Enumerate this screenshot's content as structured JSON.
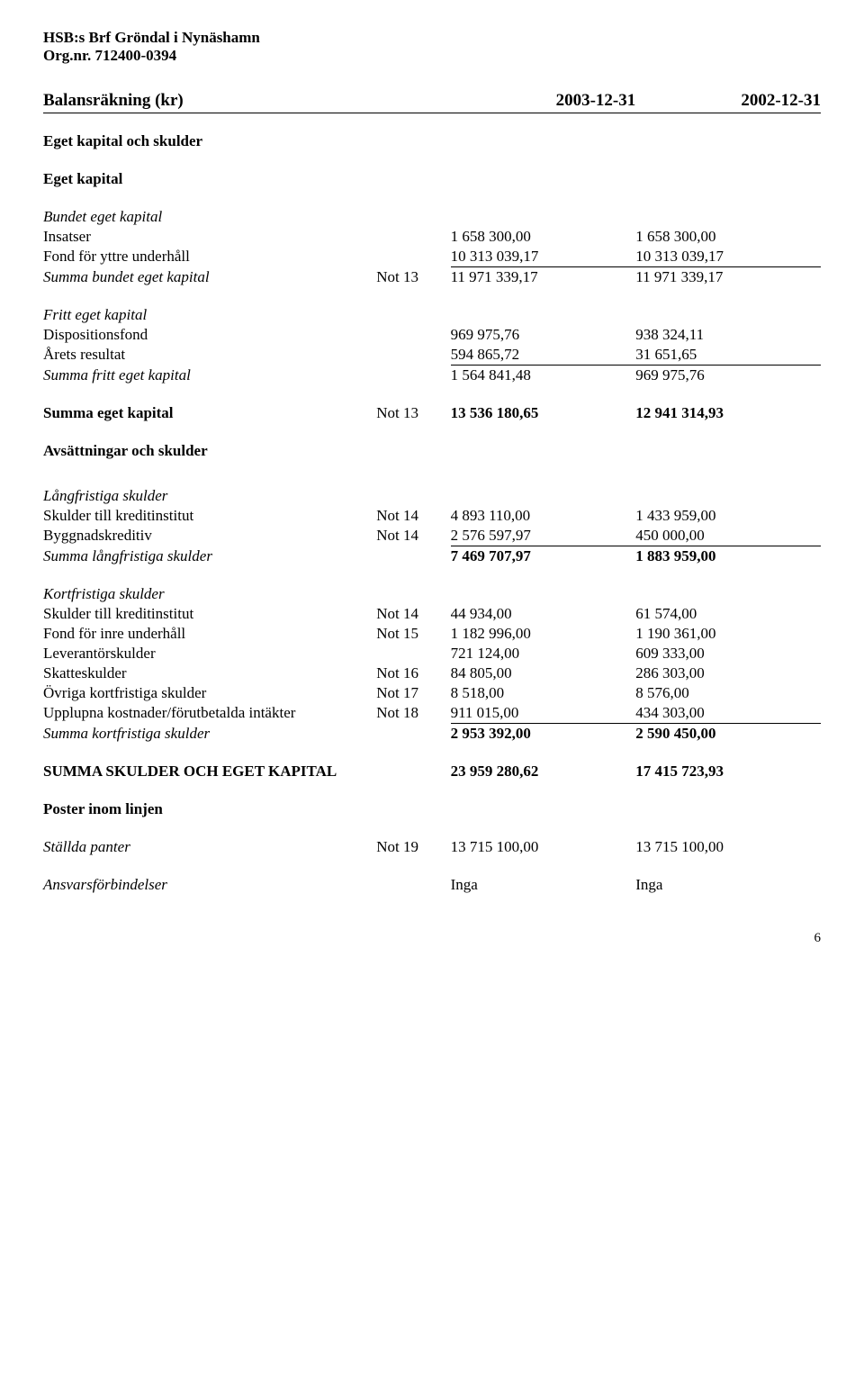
{
  "header": {
    "org_name": "HSB:s Brf Gröndal i Nynäshamn",
    "org_nr_label": "Org.nr.",
    "org_nr": "712400-0394"
  },
  "title": "Balansräkning (kr)",
  "dates": {
    "d1": "2003-12-31",
    "d2": "2002-12-31"
  },
  "h_eget_kap_skulder": "Eget kapital och skulder",
  "h_eget_kap": "Eget kapital",
  "h_bundet": "Bundet eget kapital",
  "rows_bundet": [
    {
      "label": "Insatser",
      "note": "",
      "v1": "1 658 300,00",
      "v2": "1 658 300,00"
    },
    {
      "label": "Fond för yttre underhåll",
      "note": "",
      "v1": "10 313 039,17",
      "v2": "10 313 039,17"
    }
  ],
  "sum_bundet": {
    "label": "Summa bundet eget kapital",
    "note": "Not 13",
    "v1": "11 971 339,17",
    "v2": "11 971 339,17"
  },
  "h_fritt": "Fritt eget kapital",
  "rows_fritt": [
    {
      "label": "Dispositionsfond",
      "note": "",
      "v1": "969 975,76",
      "v2": "938 324,11"
    },
    {
      "label": "Årets resultat",
      "note": "",
      "v1": "594 865,72",
      "v2": "31 651,65"
    }
  ],
  "sum_fritt": {
    "label": "Summa fritt eget kapital",
    "note": "",
    "v1": "1 564 841,48",
    "v2": "969 975,76"
  },
  "sum_eget": {
    "label": "Summa eget kapital",
    "note": "Not 13",
    "v1": "13 536 180,65",
    "v2": "12 941 314,93"
  },
  "h_avs": "Avsättningar och skulder",
  "h_lang": "Långfristiga skulder",
  "rows_lang": [
    {
      "label": "Skulder till kreditinstitut",
      "note": "Not 14",
      "v1": "4 893 110,00",
      "v2": "1 433 959,00"
    },
    {
      "label": "Byggnadskreditiv",
      "note": "Not 14",
      "v1": "2 576 597,97",
      "v2": "450 000,00"
    }
  ],
  "sum_lang": {
    "label": "Summa långfristiga skulder",
    "note": "",
    "v1": "7 469 707,97",
    "v2": "1 883 959,00"
  },
  "h_kort": "Kortfristiga skulder",
  "rows_kort": [
    {
      "label": "Skulder till kreditinstitut",
      "note": "Not 14",
      "v1": "44 934,00",
      "v2": "61 574,00"
    },
    {
      "label": "Fond för inre underhåll",
      "note": "Not 15",
      "v1": "1 182 996,00",
      "v2": "1 190 361,00"
    },
    {
      "label": "Leverantörskulder",
      "note": "",
      "v1": "721 124,00",
      "v2": "609 333,00"
    },
    {
      "label": "Skatteskulder",
      "note": "Not 16",
      "v1": "84 805,00",
      "v2": "286 303,00"
    },
    {
      "label": "Övriga kortfristiga skulder",
      "note": "Not 17",
      "v1": "8 518,00",
      "v2": "8 576,00"
    },
    {
      "label": "Upplupna kostnader/förutbetalda intäkter",
      "note": "Not 18",
      "v1": "911 015,00",
      "v2": "434 303,00"
    }
  ],
  "sum_kort": {
    "label": "Summa kortfristiga skulder",
    "note": "",
    "v1": "2 953 392,00",
    "v2": "2 590 450,00"
  },
  "grand": {
    "label": "SUMMA SKULDER OCH EGET KAPITAL",
    "v1": "23 959 280,62",
    "v2": "17 415 723,93"
  },
  "h_poster": "Poster inom linjen",
  "panter": {
    "label": "Ställda panter",
    "note": "Not 19",
    "v1": "13 715 100,00",
    "v2": "13 715 100,00"
  },
  "ansvar": {
    "label": "Ansvarsförbindelser",
    "v1": "Inga",
    "v2": "Inga"
  },
  "page_number": "6"
}
